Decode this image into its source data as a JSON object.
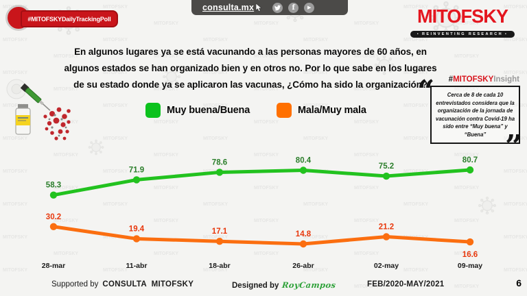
{
  "header": {
    "badge": "#MITOFSKYDailyTrackingPoll",
    "site": "consulta.mx",
    "social_icons": [
      "twitter",
      "facebook",
      "youtube"
    ],
    "logo_title": "MITOFSKY",
    "logo_tagline": "REINVENTING RESEARCH"
  },
  "question": "En algunos lugares ya se está vacunando a las personas mayores de 60 años, en algunos estados se han organizado bien y en otros no. Por lo que sabe en los lugares de su estado donde ya se aplicaron las vacunas, ¿Cómo ha sido la organización?",
  "insight": {
    "hash": "#",
    "brand": "MITOFSKY",
    "word": "Insight",
    "quote": "Cerca de 8 de cada 10 entrevistados considera que la organización de la jornada de vacunación contra Covid-19 ha sido entre “Muy buena” y “Buena”"
  },
  "icons": {
    "open_quote": "“",
    "close_quote": "”",
    "youtube_glyph": "▶",
    "facebook_glyph": "f"
  },
  "legend": [
    {
      "label": "Muy buena/Buena",
      "color": "#0cc21e"
    },
    {
      "label": "Mala/Muy mala",
      "color": "#ff7000"
    }
  ],
  "chart_data": {
    "type": "line",
    "categories": [
      "28-mar",
      "11-abr",
      "18-abr",
      "26-abr",
      "02-may",
      "09-may"
    ],
    "series": [
      {
        "name": "Muy buena/Buena",
        "color": "#22c21f",
        "label_color": "#2b7e2b",
        "values": [
          58.3,
          71.9,
          78.6,
          80.4,
          75.2,
          80.7
        ]
      },
      {
        "name": "Mala/Muy mala",
        "color": "#fb6e10",
        "label_color": "#e8380d",
        "values": [
          30.2,
          19.4,
          17.1,
          14.8,
          21.2,
          16.6
        ]
      }
    ],
    "title": "",
    "xlabel": "",
    "ylabel": "",
    "ylim": [
      0,
      100
    ],
    "grid": false,
    "legend_position": "top",
    "data_labels": true
  },
  "footer": {
    "supported_label": "Supported by",
    "supporters": "CONSULTA  MITOFSKY",
    "designed_label": "Designed by",
    "designer": "RoyCampos",
    "period": "FEB/2020-MAY/2021",
    "page": "6"
  }
}
